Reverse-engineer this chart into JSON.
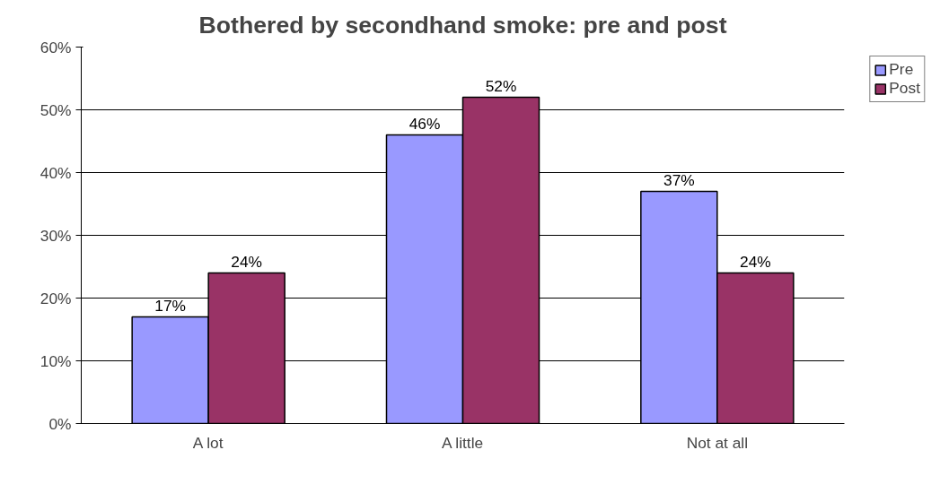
{
  "chart_data": {
    "type": "bar",
    "title": "Bothered by secondhand smoke: pre and post",
    "categories": [
      "A lot",
      "A little",
      "Not at all"
    ],
    "series": [
      {
        "name": "Pre",
        "color": "#9999ff",
        "values": [
          17,
          46,
          37
        ],
        "value_labels": [
          "17%",
          "46%",
          "37%"
        ]
      },
      {
        "name": "Post",
        "color": "#993366",
        "values": [
          24,
          52,
          24
        ],
        "value_labels": [
          "24%",
          "52%",
          "24%"
        ]
      }
    ],
    "ylim": [
      0,
      60
    ],
    "yticks": [
      {
        "value": 0,
        "label": "0%"
      },
      {
        "value": 10,
        "label": "10%"
      },
      {
        "value": 20,
        "label": "20%"
      },
      {
        "value": 30,
        "label": "30%"
      },
      {
        "value": 40,
        "label": "40%"
      },
      {
        "value": 50,
        "label": "50%"
      },
      {
        "value": 60,
        "label": "60%"
      }
    ],
    "grid": "y",
    "legend": "right"
  }
}
